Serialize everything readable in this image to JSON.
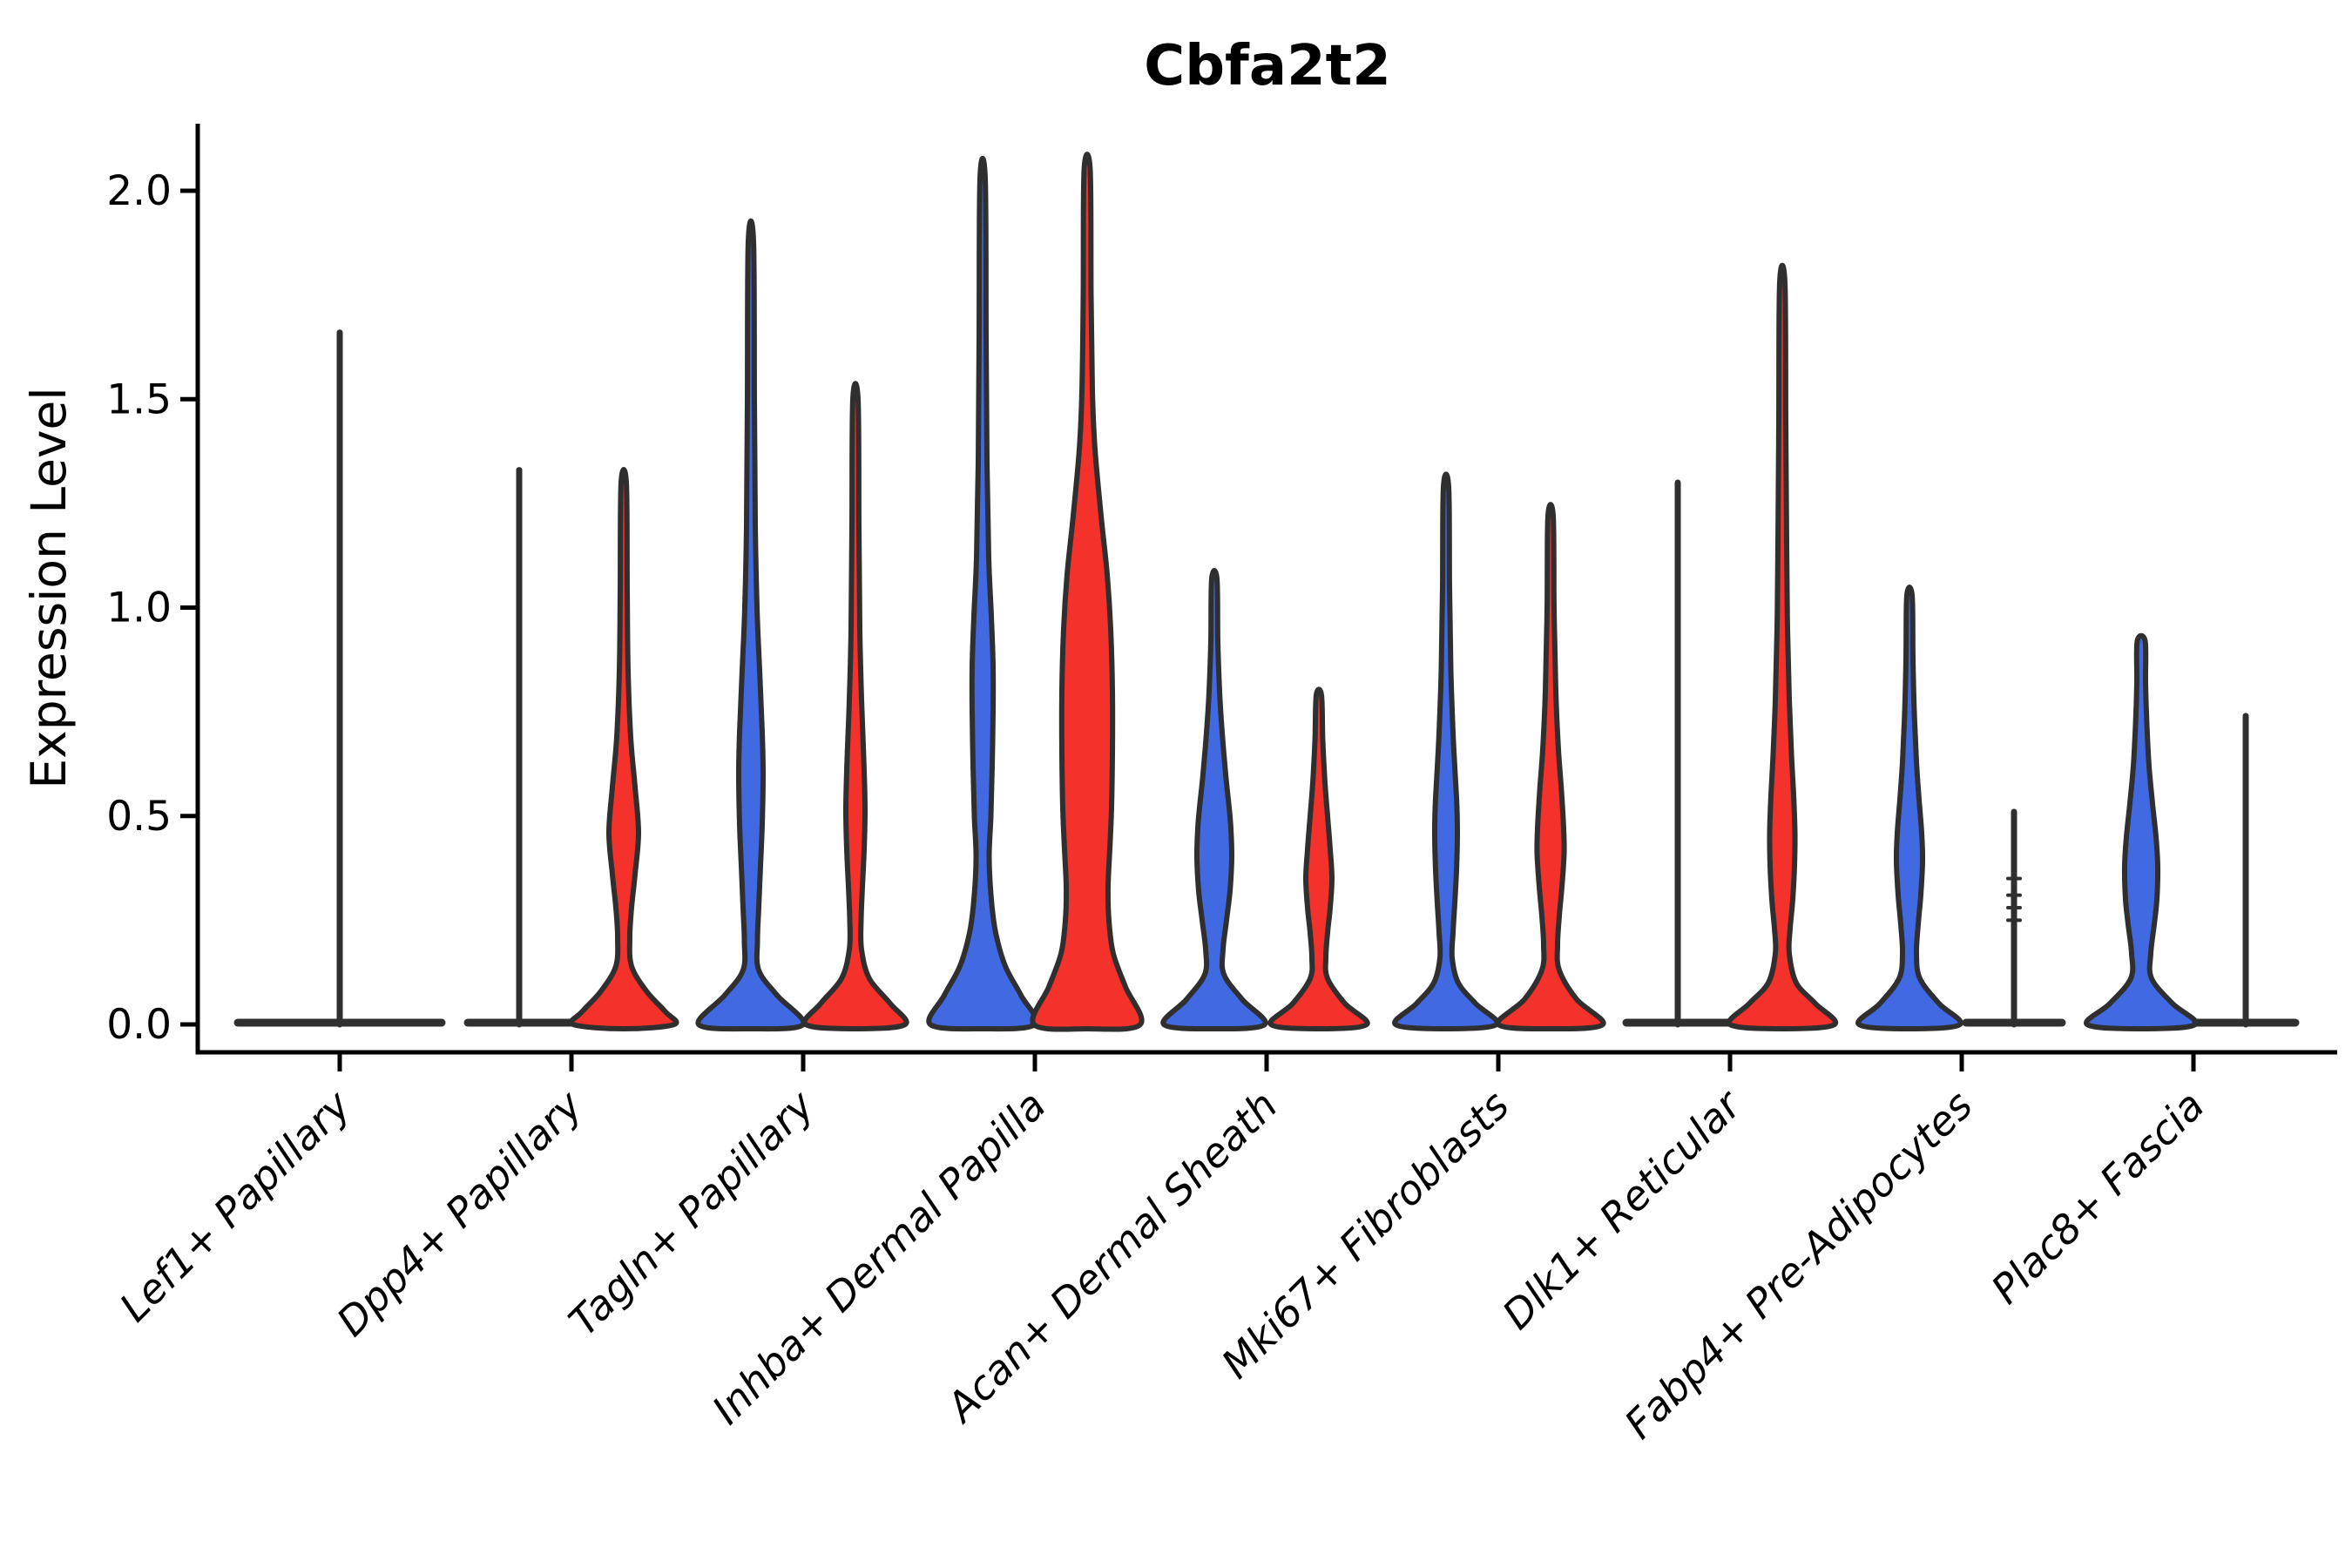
{
  "title": "Cbfa2t2",
  "chart_data": {
    "type": "violin",
    "title": "Cbfa2t2",
    "xlabel": "",
    "ylabel": "Expression Level",
    "ylim": [
      0,
      2.15
    ],
    "grid": false,
    "legend": null,
    "yticks": [
      {
        "label": "0.0",
        "value": 0.0
      },
      {
        "label": "0.5",
        "value": 0.5
      },
      {
        "label": "1.0",
        "value": 1.0
      },
      {
        "label": "1.5",
        "value": 1.5
      },
      {
        "label": "2.0",
        "value": 2.0
      }
    ],
    "categories": [
      "Lef1+ Papillary",
      "Dpp4+ Papillary",
      "Tagln+ Papillary",
      "Inhba+ Dermal Papilla",
      "Acan+ Dermal Sheath",
      "Mki67+ Fibroblasts",
      "Dlk1+ Reticular",
      "Fabp4+ Pre-Adipocytes",
      "Plac8+ Fascia"
    ],
    "colors": {
      "blue": "#4169E1",
      "red": "#F4312B",
      "outline": "#2F2F2F",
      "axis": "#000000"
    },
    "groups": [
      {
        "category": "Lef1+ Papillary",
        "violins": [
          {
            "pos": "center",
            "color": null,
            "flat": true,
            "max": 1.66,
            "base_halfwidth": 120
          }
        ]
      },
      {
        "category": "Dpp4+ Papillary",
        "violins": [
          {
            "pos": "left",
            "color": "blue",
            "flat": true,
            "max": 1.33,
            "base_halfwidth": 62
          },
          {
            "pos": "right",
            "color": "red",
            "flat": false,
            "max": 1.3,
            "shape": [
              [
                1.3,
                3
              ],
              [
                1.05,
                4
              ],
              [
                0.85,
                5
              ],
              [
                0.69,
                8
              ],
              [
                0.57,
                13
              ],
              [
                0.46,
                17
              ],
              [
                0.36,
                13
              ],
              [
                0.28,
                9
              ],
              [
                0.21,
                7
              ],
              [
                0.14,
                9
              ],
              [
                0.08,
                26
              ],
              [
                0.03,
                48
              ],
              [
                0,
                58
              ]
            ]
          }
        ]
      },
      {
        "category": "Tagln+ Papillary",
        "violins": [
          {
            "pos": "left",
            "color": "blue",
            "flat": false,
            "max": 1.88,
            "shape": [
              [
                1.88,
                3
              ],
              [
                1.5,
                4
              ],
              [
                1.2,
                5
              ],
              [
                1.0,
                7
              ],
              [
                0.85,
                10
              ],
              [
                0.7,
                13
              ],
              [
                0.6,
                14
              ],
              [
                0.48,
                13
              ],
              [
                0.38,
                11
              ],
              [
                0.28,
                9
              ],
              [
                0.2,
                7.5
              ],
              [
                0.13,
                9
              ],
              [
                0.07,
                30
              ],
              [
                0,
                60
              ]
            ]
          },
          {
            "pos": "right",
            "color": "red",
            "flat": false,
            "max": 1.5,
            "shape": [
              [
                1.5,
                3
              ],
              [
                1.2,
                4
              ],
              [
                0.95,
                5
              ],
              [
                0.78,
                7
              ],
              [
                0.64,
                9.5
              ],
              [
                0.52,
                11
              ],
              [
                0.42,
                10
              ],
              [
                0.33,
                8
              ],
              [
                0.25,
                6.5
              ],
              [
                0.18,
                7
              ],
              [
                0.11,
                16
              ],
              [
                0.05,
                40
              ],
              [
                0,
                57
              ]
            ]
          }
        ]
      },
      {
        "category": "Inhba+ Dermal Papilla",
        "violins": [
          {
            "pos": "left",
            "color": "blue",
            "flat": false,
            "max": 2.03,
            "shape": [
              [
                2.03,
                3
              ],
              [
                1.65,
                4
              ],
              [
                1.35,
                5
              ],
              [
                1.12,
                7
              ],
              [
                0.98,
                10
              ],
              [
                0.86,
                12
              ],
              [
                0.75,
                12
              ],
              [
                0.62,
                11
              ],
              [
                0.5,
                9.5
              ],
              [
                0.4,
                7.5
              ],
              [
                0.3,
                10
              ],
              [
                0.22,
                15
              ],
              [
                0.14,
                26
              ],
              [
                0.07,
                44
              ],
              [
                0,
                60
              ]
            ]
          },
          {
            "pos": "right",
            "color": "red",
            "flat": false,
            "max": 2.05,
            "shape": [
              [
                2.05,
                3.5
              ],
              [
                1.75,
                4.5
              ],
              [
                1.52,
                6
              ],
              [
                1.38,
                9
              ],
              [
                1.22,
                16
              ],
              [
                1.08,
                23
              ],
              [
                0.95,
                27
              ],
              [
                0.8,
                29
              ],
              [
                0.65,
                29
              ],
              [
                0.52,
                28
              ],
              [
                0.42,
                26
              ],
              [
                0.33,
                24
              ],
              [
                0.25,
                25
              ],
              [
                0.17,
                30
              ],
              [
                0.09,
                44
              ],
              [
                0,
                61
              ]
            ]
          }
        ]
      },
      {
        "category": "Acan+ Dermal Sheath",
        "violins": [
          {
            "pos": "left",
            "color": "blue",
            "flat": false,
            "max": 1.07,
            "shape": [
              [
                1.07,
                3
              ],
              [
                0.92,
                4
              ],
              [
                0.8,
                6
              ],
              [
                0.7,
                9
              ],
              [
                0.6,
                13
              ],
              [
                0.52,
                17
              ],
              [
                0.47,
                19
              ],
              [
                0.4,
                20
              ],
              [
                0.32,
                18
              ],
              [
                0.25,
                14
              ],
              [
                0.18,
                10
              ],
              [
                0.12,
                11
              ],
              [
                0.06,
                32
              ],
              [
                0,
                58
              ]
            ]
          },
          {
            "pos": "right",
            "color": "red",
            "flat": false,
            "max": 0.79,
            "shape": [
              [
                0.79,
                3
              ],
              [
                0.68,
                4.5
              ],
              [
                0.58,
                7
              ],
              [
                0.5,
                10
              ],
              [
                0.42,
                13
              ],
              [
                0.35,
                15
              ],
              [
                0.28,
                13
              ],
              [
                0.22,
                10
              ],
              [
                0.16,
                8
              ],
              [
                0.11,
                10
              ],
              [
                0.05,
                30
              ],
              [
                0,
                55
              ]
            ]
          }
        ]
      },
      {
        "category": "Mki67+ Fibroblasts",
        "violins": [
          {
            "pos": "left",
            "color": "blue",
            "flat": false,
            "max": 1.29,
            "shape": [
              [
                1.29,
                3
              ],
              [
                1.05,
                4
              ],
              [
                0.85,
                5.5
              ],
              [
                0.7,
                8
              ],
              [
                0.6,
                10.5
              ],
              [
                0.52,
                12.5
              ],
              [
                0.45,
                13
              ],
              [
                0.37,
                12
              ],
              [
                0.29,
                10
              ],
              [
                0.22,
                8
              ],
              [
                0.16,
                7
              ],
              [
                0.1,
                14
              ],
              [
                0.05,
                34
              ],
              [
                0,
                58
              ]
            ]
          },
          {
            "pos": "right",
            "color": "red",
            "flat": false,
            "max": 1.22,
            "shape": [
              [
                1.22,
                3
              ],
              [
                1.0,
                4
              ],
              [
                0.8,
                6
              ],
              [
                0.66,
                9
              ],
              [
                0.56,
                12.5
              ],
              [
                0.47,
                15
              ],
              [
                0.41,
                15.5
              ],
              [
                0.33,
                13
              ],
              [
                0.26,
                10
              ],
              [
                0.19,
                8
              ],
              [
                0.13,
                10
              ],
              [
                0.06,
                30
              ],
              [
                0,
                60
              ]
            ]
          }
        ]
      },
      {
        "category": "Dlk1+ Reticular",
        "violins": [
          {
            "pos": "left",
            "color": "blue",
            "flat": true,
            "max": 1.3,
            "base_halfwidth": 62
          },
          {
            "pos": "right",
            "color": "red",
            "flat": false,
            "max": 1.78,
            "shape": [
              [
                1.78,
                3
              ],
              [
                1.45,
                4
              ],
              [
                1.15,
                5
              ],
              [
                0.95,
                6
              ],
              [
                0.78,
                8
              ],
              [
                0.65,
                10.5
              ],
              [
                0.55,
                13
              ],
              [
                0.46,
                14.5
              ],
              [
                0.38,
                14
              ],
              [
                0.3,
                12
              ],
              [
                0.23,
                9
              ],
              [
                0.17,
                8
              ],
              [
                0.1,
                16
              ],
              [
                0.05,
                38
              ],
              [
                0,
                60
              ]
            ]
          }
        ]
      },
      {
        "category": "Fabp4+ Pre-Adipocytes",
        "violins": [
          {
            "pos": "left",
            "color": "blue",
            "flat": false,
            "max": 1.03,
            "shape": [
              [
                1.03,
                3
              ],
              [
                0.88,
                4
              ],
              [
                0.75,
                5.5
              ],
              [
                0.63,
                8
              ],
              [
                0.54,
                11
              ],
              [
                0.46,
                14
              ],
              [
                0.39,
                15
              ],
              [
                0.31,
                13
              ],
              [
                0.24,
                10
              ],
              [
                0.17,
                8
              ],
              [
                0.11,
                12
              ],
              [
                0.05,
                34
              ],
              [
                0,
                58
              ]
            ]
          },
          {
            "pos": "right",
            "color": "red",
            "flat": true,
            "max": 0.51,
            "base_halfwidth": 58,
            "outlier_dashes": [
              0.25,
              0.28,
              0.31,
              0.35
            ]
          }
        ]
      },
      {
        "category": "Plac8+ Fascia",
        "violins": [
          {
            "pos": "left",
            "color": "blue",
            "flat": false,
            "max": 0.92,
            "shape": [
              [
                0.92,
                4.5
              ],
              [
                0.82,
                5
              ],
              [
                0.72,
                6.5
              ],
              [
                0.62,
                9
              ],
              [
                0.53,
                13
              ],
              [
                0.45,
                17
              ],
              [
                0.38,
                19
              ],
              [
                0.3,
                18
              ],
              [
                0.24,
                15
              ],
              [
                0.17,
                11
              ],
              [
                0.11,
                12
              ],
              [
                0.05,
                36
              ],
              [
                0,
                62
              ]
            ]
          },
          {
            "pos": "right",
            "color": "red",
            "flat": true,
            "max": 0.74,
            "base_halfwidth": 60
          }
        ]
      }
    ]
  }
}
